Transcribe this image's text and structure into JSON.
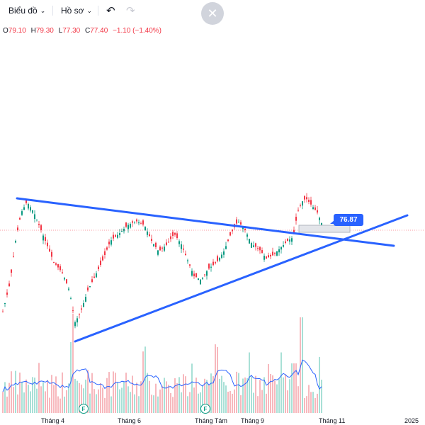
{
  "toolbar": {
    "chart_label": "Biểu đồ",
    "profile_label": "Hồ sơ",
    "close_glyph": "✕"
  },
  "ohlc": {
    "o_key": "O",
    "o_val": "79.10",
    "h_key": "H",
    "h_val": "79.30",
    "l_key": "L",
    "l_val": "77.30",
    "c_key": "C",
    "c_val": "77.40",
    "change": "−1.10 (−1.40%)"
  },
  "price_badge": "76.87",
  "x_axis": {
    "labels": [
      "Tháng 4",
      "Tháng 6",
      "Tháng Tám",
      "Tháng 9",
      "Tháng 11",
      "2025"
    ]
  },
  "events": [
    {
      "label": "F"
    },
    {
      "label": "F"
    }
  ],
  "colors": {
    "up": "#089981",
    "down": "#f23645",
    "trendline": "#2962ff",
    "volume_up": "#a8e0d6",
    "volume_down": "#f7b8bd"
  }
}
